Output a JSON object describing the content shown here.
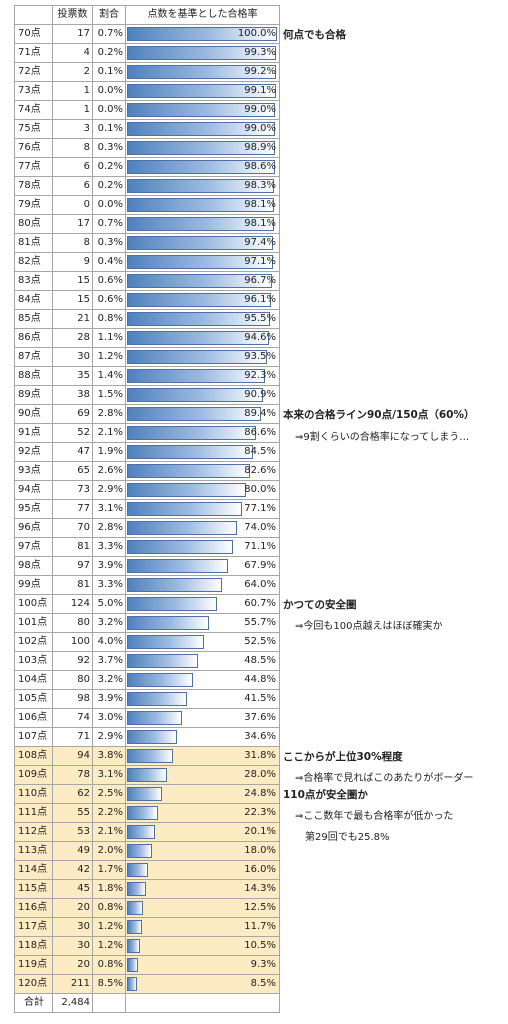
{
  "chart_data": {
    "type": "table",
    "headers": [
      "",
      "投票数",
      "割合",
      "点数を基準とした合格率"
    ],
    "rows": [
      {
        "score": "70点",
        "votes": "17",
        "ratio": "0.7%",
        "pass": "100.0%",
        "pass_value": 100.0
      },
      {
        "score": "71点",
        "votes": "4",
        "ratio": "0.2%",
        "pass": "99.3%",
        "pass_value": 99.3
      },
      {
        "score": "72点",
        "votes": "2",
        "ratio": "0.1%",
        "pass": "99.2%",
        "pass_value": 99.2
      },
      {
        "score": "73点",
        "votes": "1",
        "ratio": "0.0%",
        "pass": "99.1%",
        "pass_value": 99.1
      },
      {
        "score": "74点",
        "votes": "1",
        "ratio": "0.0%",
        "pass": "99.0%",
        "pass_value": 99.0
      },
      {
        "score": "75点",
        "votes": "3",
        "ratio": "0.1%",
        "pass": "99.0%",
        "pass_value": 99.0
      },
      {
        "score": "76点",
        "votes": "8",
        "ratio": "0.3%",
        "pass": "98.9%",
        "pass_value": 98.9
      },
      {
        "score": "77点",
        "votes": "6",
        "ratio": "0.2%",
        "pass": "98.6%",
        "pass_value": 98.6
      },
      {
        "score": "78点",
        "votes": "6",
        "ratio": "0.2%",
        "pass": "98.3%",
        "pass_value": 98.3
      },
      {
        "score": "79点",
        "votes": "0",
        "ratio": "0.0%",
        "pass": "98.1%",
        "pass_value": 98.1
      },
      {
        "score": "80点",
        "votes": "17",
        "ratio": "0.7%",
        "pass": "98.1%",
        "pass_value": 98.1
      },
      {
        "score": "81点",
        "votes": "8",
        "ratio": "0.3%",
        "pass": "97.4%",
        "pass_value": 97.4
      },
      {
        "score": "82点",
        "votes": "9",
        "ratio": "0.4%",
        "pass": "97.1%",
        "pass_value": 97.1
      },
      {
        "score": "83点",
        "votes": "15",
        "ratio": "0.6%",
        "pass": "96.7%",
        "pass_value": 96.7
      },
      {
        "score": "84点",
        "votes": "15",
        "ratio": "0.6%",
        "pass": "96.1%",
        "pass_value": 96.1
      },
      {
        "score": "85点",
        "votes": "21",
        "ratio": "0.8%",
        "pass": "95.5%",
        "pass_value": 95.5
      },
      {
        "score": "86点",
        "votes": "28",
        "ratio": "1.1%",
        "pass": "94.6%",
        "pass_value": 94.6
      },
      {
        "score": "87点",
        "votes": "30",
        "ratio": "1.2%",
        "pass": "93.5%",
        "pass_value": 93.5
      },
      {
        "score": "88点",
        "votes": "35",
        "ratio": "1.4%",
        "pass": "92.3%",
        "pass_value": 92.3
      },
      {
        "score": "89点",
        "votes": "38",
        "ratio": "1.5%",
        "pass": "90.9%",
        "pass_value": 90.9
      },
      {
        "score": "90点",
        "votes": "69",
        "ratio": "2.8%",
        "pass": "89.4%",
        "pass_value": 89.4
      },
      {
        "score": "91点",
        "votes": "52",
        "ratio": "2.1%",
        "pass": "86.6%",
        "pass_value": 86.6
      },
      {
        "score": "92点",
        "votes": "47",
        "ratio": "1.9%",
        "pass": "84.5%",
        "pass_value": 84.5
      },
      {
        "score": "93点",
        "votes": "65",
        "ratio": "2.6%",
        "pass": "82.6%",
        "pass_value": 82.6
      },
      {
        "score": "94点",
        "votes": "73",
        "ratio": "2.9%",
        "pass": "80.0%",
        "pass_value": 80.0
      },
      {
        "score": "95点",
        "votes": "77",
        "ratio": "3.1%",
        "pass": "77.1%",
        "pass_value": 77.1
      },
      {
        "score": "96点",
        "votes": "70",
        "ratio": "2.8%",
        "pass": "74.0%",
        "pass_value": 74.0
      },
      {
        "score": "97点",
        "votes": "81",
        "ratio": "3.3%",
        "pass": "71.1%",
        "pass_value": 71.1
      },
      {
        "score": "98点",
        "votes": "97",
        "ratio": "3.9%",
        "pass": "67.9%",
        "pass_value": 67.9
      },
      {
        "score": "99点",
        "votes": "81",
        "ratio": "3.3%",
        "pass": "64.0%",
        "pass_value": 64.0
      },
      {
        "score": "100点",
        "votes": "124",
        "ratio": "5.0%",
        "pass": "60.7%",
        "pass_value": 60.7
      },
      {
        "score": "101点",
        "votes": "80",
        "ratio": "3.2%",
        "pass": "55.7%",
        "pass_value": 55.7
      },
      {
        "score": "102点",
        "votes": "100",
        "ratio": "4.0%",
        "pass": "52.5%",
        "pass_value": 52.5
      },
      {
        "score": "103点",
        "votes": "92",
        "ratio": "3.7%",
        "pass": "48.5%",
        "pass_value": 48.5
      },
      {
        "score": "104点",
        "votes": "80",
        "ratio": "3.2%",
        "pass": "44.8%",
        "pass_value": 44.8
      },
      {
        "score": "105点",
        "votes": "98",
        "ratio": "3.9%",
        "pass": "41.5%",
        "pass_value": 41.5
      },
      {
        "score": "106点",
        "votes": "74",
        "ratio": "3.0%",
        "pass": "37.6%",
        "pass_value": 37.6
      },
      {
        "score": "107点",
        "votes": "71",
        "ratio": "2.9%",
        "pass": "34.6%",
        "pass_value": 34.6
      },
      {
        "score": "108点",
        "votes": "94",
        "ratio": "3.8%",
        "pass": "31.8%",
        "pass_value": 31.8,
        "highlight": true
      },
      {
        "score": "109点",
        "votes": "78",
        "ratio": "3.1%",
        "pass": "28.0%",
        "pass_value": 28.0,
        "highlight": true
      },
      {
        "score": "110点",
        "votes": "62",
        "ratio": "2.5%",
        "pass": "24.8%",
        "pass_value": 24.8,
        "highlight": true
      },
      {
        "score": "111点",
        "votes": "55",
        "ratio": "2.2%",
        "pass": "22.3%",
        "pass_value": 22.3,
        "highlight": true
      },
      {
        "score": "112点",
        "votes": "53",
        "ratio": "2.1%",
        "pass": "20.1%",
        "pass_value": 20.1,
        "highlight": true
      },
      {
        "score": "113点",
        "votes": "49",
        "ratio": "2.0%",
        "pass": "18.0%",
        "pass_value": 18.0,
        "highlight": true
      },
      {
        "score": "114点",
        "votes": "42",
        "ratio": "1.7%",
        "pass": "16.0%",
        "pass_value": 16.0,
        "highlight": true
      },
      {
        "score": "115点",
        "votes": "45",
        "ratio": "1.8%",
        "pass": "14.3%",
        "pass_value": 14.3,
        "highlight": true
      },
      {
        "score": "116点",
        "votes": "20",
        "ratio": "0.8%",
        "pass": "12.5%",
        "pass_value": 12.5,
        "highlight": true
      },
      {
        "score": "117点",
        "votes": "30",
        "ratio": "1.2%",
        "pass": "11.7%",
        "pass_value": 11.7,
        "highlight": true
      },
      {
        "score": "118点",
        "votes": "30",
        "ratio": "1.2%",
        "pass": "10.5%",
        "pass_value": 10.5,
        "highlight": true
      },
      {
        "score": "119点",
        "votes": "20",
        "ratio": "0.8%",
        "pass": "9.3%",
        "pass_value": 9.3,
        "highlight": true
      },
      {
        "score": "120点",
        "votes": "211",
        "ratio": "8.5%",
        "pass": "8.5%",
        "pass_value": 8.5,
        "highlight": true
      }
    ],
    "total": {
      "label": "合計",
      "votes": "2,484"
    },
    "bar_max": 100,
    "highlight_color": "#fdebc3",
    "bar_color": "#4f81bd"
  },
  "annotations": [
    {
      "id": "any-pass",
      "text": "何点でも合格",
      "bold": true,
      "row": 0
    },
    {
      "id": "orig-line",
      "text": "本来の合格ライン90点/150点（60%）",
      "bold": true,
      "row": 20
    },
    {
      "id": "orig-line-note",
      "text": "⇒9割くらいの合格率になってしまう…",
      "bold": false,
      "row": 21
    },
    {
      "id": "safe-zone-old",
      "text": "かつての安全圏",
      "bold": true,
      "row": 30
    },
    {
      "id": "safe-zone-old-note",
      "text": "⇒今回も100点越えはほぼ確実か",
      "bold": false,
      "row": 31
    },
    {
      "id": "top30",
      "text": "ここからが上位30%程度",
      "bold": true,
      "row": 38
    },
    {
      "id": "top30-note",
      "text": "⇒合格率で見ればこのあたりがボーダー",
      "bold": false,
      "row": 39
    },
    {
      "id": "safe110",
      "text": "110点が安全圏か",
      "bold": true,
      "row": 40
    },
    {
      "id": "safe110-note1",
      "text": "⇒ここ数年で最も合格率が低かった",
      "bold": false,
      "row": 41
    },
    {
      "id": "safe110-note2",
      "text": "第29回でも25.8%",
      "bold": false,
      "row": 42
    }
  ]
}
